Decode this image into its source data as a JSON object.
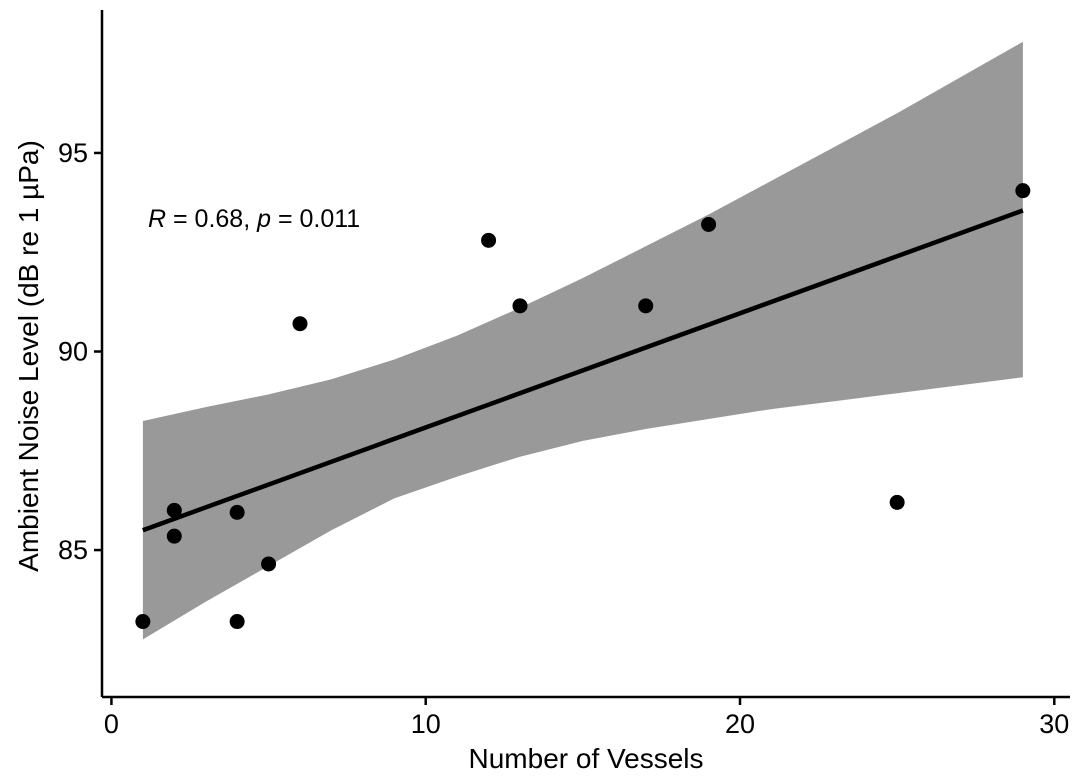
{
  "chart_data": {
    "type": "scatter",
    "xlabel": "Number of Vessels",
    "ylabel": "Ambient Noise Level (dB re 1 µPa)",
    "xlim": [
      -0.3,
      30.5
    ],
    "ylim": [
      81.3,
      98.6
    ],
    "x_ticks": [
      0,
      10,
      20,
      30
    ],
    "y_ticks": [
      85,
      90,
      95
    ],
    "grid": false,
    "points": [
      {
        "x": 1,
        "y": 83.2
      },
      {
        "x": 2,
        "y": 86.0
      },
      {
        "x": 2,
        "y": 85.35
      },
      {
        "x": 4,
        "y": 85.95
      },
      {
        "x": 4,
        "y": 83.2
      },
      {
        "x": 5,
        "y": 84.65
      },
      {
        "x": 6,
        "y": 90.7
      },
      {
        "x": 12,
        "y": 92.8
      },
      {
        "x": 13,
        "y": 91.15
      },
      {
        "x": 17,
        "y": 91.15
      },
      {
        "x": 19,
        "y": 93.2
      },
      {
        "x": 25,
        "y": 86.2
      },
      {
        "x": 29,
        "y": 94.05
      }
    ],
    "fit_line": {
      "x": [
        1,
        29
      ],
      "y": [
        85.5,
        93.55
      ]
    },
    "confidence_band": {
      "x": [
        1,
        3,
        5,
        7,
        9,
        11,
        13,
        15,
        17,
        19,
        21,
        23,
        25,
        27,
        29
      ],
      "upper": [
        88.25,
        88.6,
        88.92,
        89.3,
        89.8,
        90.4,
        91.1,
        91.85,
        92.65,
        93.45,
        94.3,
        95.15,
        96.0,
        96.9,
        97.8
      ],
      "lower": [
        82.75,
        83.7,
        84.6,
        85.5,
        86.3,
        86.85,
        87.35,
        87.75,
        88.05,
        88.3,
        88.55,
        88.75,
        88.95,
        89.15,
        89.35
      ]
    },
    "annotation": {
      "r_label": "R",
      "r_text": " = 0.68, ",
      "p_label": "p",
      "p_text": " = 0.011"
    }
  }
}
